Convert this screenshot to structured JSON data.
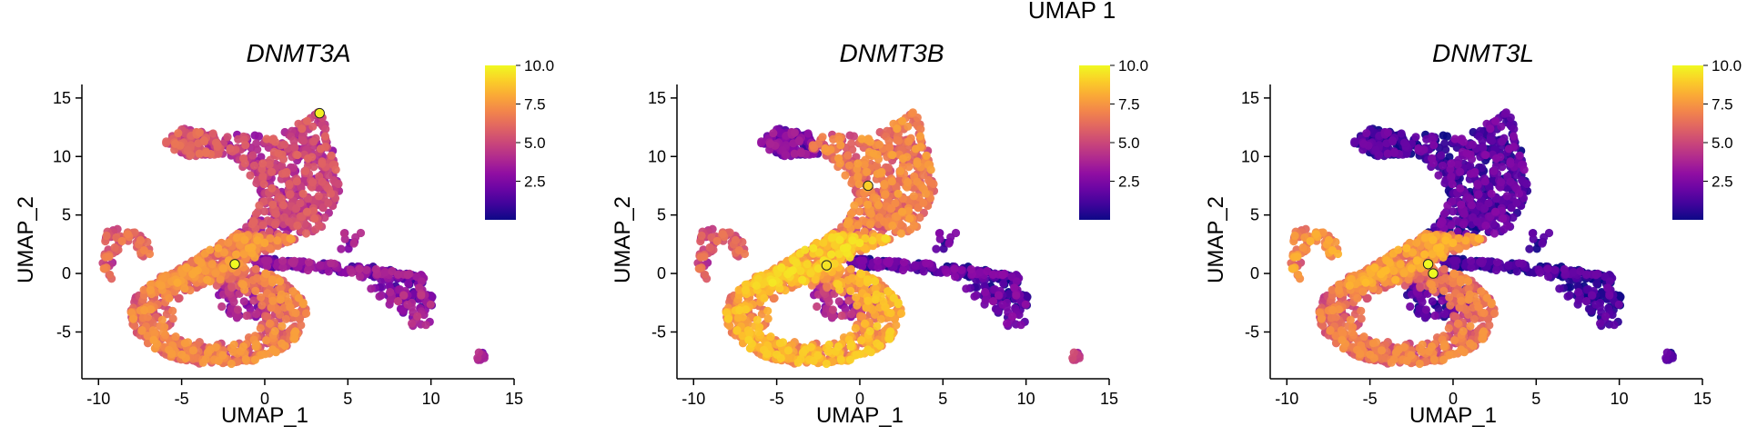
{
  "page_title": "UMAP 1",
  "chart_data": [
    {
      "type": "scatter",
      "title": "DNMT3A",
      "xlabel": "UMAP_1",
      "ylabel": "UMAP_2",
      "xlim": [
        -11,
        15
      ],
      "ylim": [
        -9,
        16
      ],
      "x_ticks": [
        -10,
        -5,
        0,
        5,
        10,
        15
      ],
      "y_ticks": [
        -5,
        0,
        5,
        10,
        15
      ],
      "colorbar": {
        "min": 0,
        "max": 10,
        "ticks": [
          2.5,
          5.0,
          7.5,
          10.0
        ],
        "colormap": "plasma"
      },
      "grid": false,
      "expression_profile": {
        "upper_arm": 4.5,
        "diagonal_band": 6.5,
        "top_left_blob": 5.0,
        "left_curl": 5.5,
        "bottom_ring": 6.2,
        "ring_inner": 3.2,
        "right_branch": 2.5,
        "right_outliers": 3.0,
        "far_outlier": 3.0,
        "hotspots": [
          {
            "x": 3.3,
            "y": 13.7,
            "value": 9.8
          },
          {
            "x": -1.8,
            "y": 0.8,
            "value": 10.0
          }
        ]
      }
    },
    {
      "type": "scatter",
      "title": "DNMT3B",
      "xlabel": "UMAP_1",
      "ylabel": "UMAP_2",
      "xlim": [
        -11,
        15
      ],
      "ylim": [
        -9,
        16
      ],
      "x_ticks": [
        -10,
        -5,
        0,
        5,
        10,
        15
      ],
      "y_ticks": [
        -5,
        0,
        5,
        10,
        15
      ],
      "colorbar": {
        "min": 0,
        "max": 10,
        "ticks": [
          2.5,
          5.0,
          7.5,
          10.0
        ],
        "colormap": "plasma"
      },
      "grid": false,
      "expression_profile": {
        "upper_arm": 6.3,
        "diagonal_band": 8.0,
        "top_left_blob": 2.2,
        "left_curl": 5.2,
        "bottom_ring": 7.5,
        "ring_inner": 3.5,
        "right_branch": 1.4,
        "right_outliers": 1.5,
        "far_outlier": 4.0,
        "hotspots": [
          {
            "x": 0.5,
            "y": 7.5,
            "value": 9.0
          },
          {
            "x": -2.0,
            "y": 0.7,
            "value": 9.5
          }
        ]
      }
    },
    {
      "type": "scatter",
      "title": "DNMT3L",
      "xlabel": "UMAP_1",
      "ylabel": "UMAP_2",
      "xlim": [
        -11,
        15
      ],
      "ylim": [
        -9,
        16
      ],
      "x_ticks": [
        -10,
        -5,
        0,
        5,
        10,
        15
      ],
      "y_ticks": [
        -5,
        0,
        5,
        10,
        15
      ],
      "colorbar": {
        "min": 0,
        "max": 10,
        "ticks": [
          2.5,
          5.0,
          7.5,
          10.0
        ],
        "colormap": "plasma"
      },
      "grid": false,
      "expression_profile": {
        "upper_arm": 1.2,
        "diagonal_band": 7.0,
        "top_left_blob": 0.8,
        "left_curl": 6.8,
        "bottom_ring": 6.0,
        "ring_inner": 1.0,
        "right_branch": 0.6,
        "right_outliers": 0.6,
        "far_outlier": 0.8,
        "hotspots": [
          {
            "x": -1.5,
            "y": 0.8,
            "value": 10.0
          },
          {
            "x": -1.2,
            "y": 0.0,
            "value": 10.0
          }
        ]
      }
    }
  ]
}
